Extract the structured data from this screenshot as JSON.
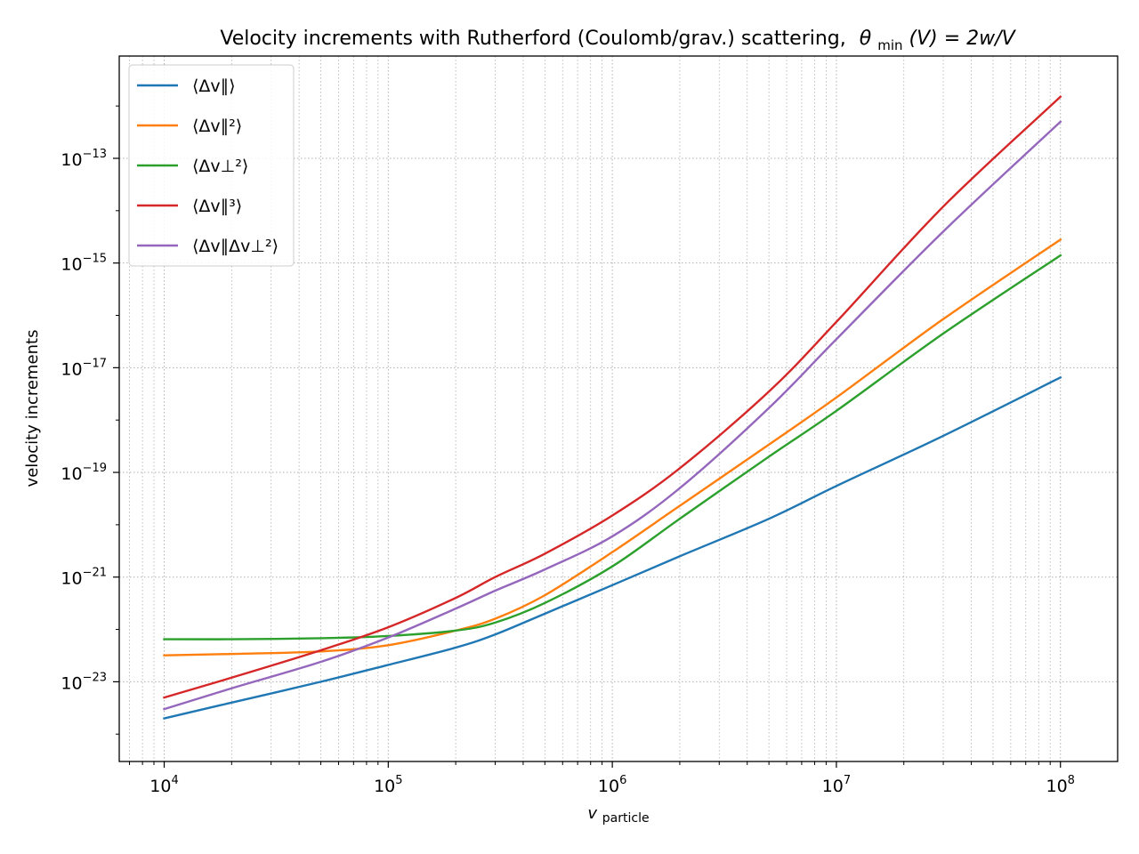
{
  "chart_data": {
    "type": "line",
    "title_main": "Velocity increments with Rutherford (Coulomb/grav.) scattering,",
    "title_math": "θ",
    "title_math_sub": "min",
    "title_math_rest": "(V) = 2w/V",
    "xlabel": "v",
    "xlabel_sub": "particle",
    "ylabel": "velocity increments",
    "xscale": "log",
    "yscale": "log",
    "xlim": [
      6300,
      180000000
    ],
    "ylim": [
      3e-25,
      9e-12
    ],
    "grid": true,
    "grid_style": "dotted",
    "legend_position": "top-left",
    "x_ticks": [
      {
        "base": "10",
        "exp": "4",
        "value": 10000
      },
      {
        "base": "10",
        "exp": "5",
        "value": 100000
      },
      {
        "base": "10",
        "exp": "6",
        "value": 1000000
      },
      {
        "base": "10",
        "exp": "7",
        "value": 10000000
      },
      {
        "base": "10",
        "exp": "8",
        "value": 100000000
      }
    ],
    "y_ticks": [
      {
        "base": "10",
        "exp": "−23",
        "value": 1e-23
      },
      {
        "base": "10",
        "exp": "−21",
        "value": 1e-21
      },
      {
        "base": "10",
        "exp": "−19",
        "value": 1e-19
      },
      {
        "base": "10",
        "exp": "−17",
        "value": 1e-17
      },
      {
        "base": "10",
        "exp": "−15",
        "value": 1e-15
      },
      {
        "base": "10",
        "exp": "−13",
        "value": 1e-13
      }
    ],
    "x": [
      10000,
      20000,
      50000,
      100000,
      200000,
      300000,
      500000,
      1000000,
      2000000,
      5000000,
      10000000,
      30000000,
      100000000
    ],
    "series": [
      {
        "name": "⟨Δv∥⟩",
        "color": "#1f77b4",
        "values": [
          2e-24,
          4e-24,
          1e-23,
          2.1e-23,
          4.5e-23,
          8e-23,
          2e-22,
          7e-22,
          2.5e-21,
          1.3e-20,
          5.5e-20,
          5e-19,
          6.5e-18
        ]
      },
      {
        "name": "⟨Δv∥²⟩",
        "color": "#ff7f0e",
        "values": [
          3.2e-23,
          3.4e-23,
          3.8e-23,
          5e-23,
          9.5e-23,
          1.6e-22,
          4.5e-22,
          3e-21,
          2.3e-20,
          3.4e-19,
          2.7e-18,
          8.5e-17,
          2.8e-15
        ]
      },
      {
        "name": "⟨Δv⊥²⟩",
        "color": "#2ca02c",
        "values": [
          6.5e-23,
          6.5e-23,
          6.8e-23,
          7.5e-23,
          9.5e-23,
          1.35e-22,
          3.2e-22,
          1.6e-21,
          1.3e-20,
          2e-19,
          1.5e-18,
          4.5e-17,
          1.4e-15
        ]
      },
      {
        "name": "⟨Δv∥³⟩",
        "color": "#d62728",
        "values": [
          5e-24,
          1.2e-23,
          4e-23,
          1.1e-22,
          4e-22,
          1e-21,
          2.8e-21,
          1.5e-20,
          1.2e-19,
          3.5e-18,
          7.5e-17,
          1.2e-14,
          1.5e-12
        ]
      },
      {
        "name": "⟨Δv∥Δv⊥²⟩",
        "color": "#9467bd",
        "values": [
          3e-24,
          7.5e-24,
          2.4e-23,
          7e-23,
          2.5e-22,
          5.5e-22,
          1.4e-21,
          6e-21,
          5e-20,
          1.7e-18,
          3.5e-17,
          4e-15,
          5e-13
        ]
      }
    ]
  }
}
